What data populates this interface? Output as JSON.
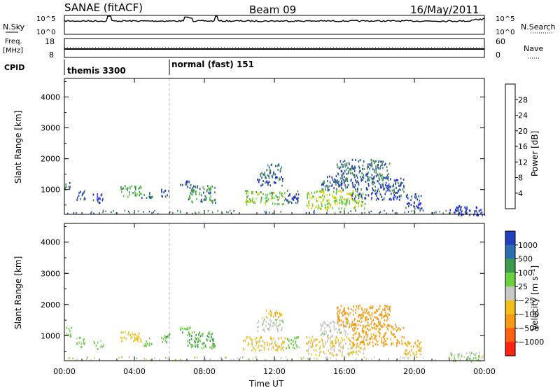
{
  "header": {
    "station": "SANAE (fitACF)",
    "beam": "Beam 09",
    "date": "16/May/2011"
  },
  "panels": {
    "nsky": {
      "label": "N.Sky",
      "tick_top": "10^5",
      "tick_bottom": "10^0"
    },
    "nsearch": {
      "label": "N.Search",
      "tick_top": "10^5",
      "tick_bottom": "10^0"
    },
    "freq": {
      "label_line1": "Freq.",
      "label_line2": "[MHz]",
      "tick_top": "18",
      "tick_bottom": "8"
    },
    "nave": {
      "label": "Nave",
      "tick_top": "60",
      "tick_bottom": "0"
    },
    "cpid": {
      "label": "CPID",
      "segments": [
        {
          "name": "themis 3300",
          "start_hour": 0
        },
        {
          "name": "normal (fast) 151",
          "start_hour": 6.0
        }
      ]
    }
  },
  "time_axis": {
    "label": "Time UT",
    "ticks": [
      "00:00",
      "04:00",
      "08:00",
      "12:00",
      "16:00",
      "20:00",
      "00:00"
    ],
    "tick_hours": [
      0,
      4,
      8,
      12,
      16,
      20,
      24
    ]
  },
  "range_axis": {
    "label": "Slant Range [km]",
    "ticks": [
      "1000",
      "2000",
      "3000",
      "4000"
    ],
    "tick_values": [
      1000,
      2000,
      3000,
      4000
    ],
    "min": 200,
    "max": 4600
  },
  "colorbars": {
    "power": {
      "title": "Power [dB]",
      "labels": [
        "4",
        "8",
        "12",
        "16",
        "20",
        "24",
        "28"
      ],
      "colors": [
        "#1a1aff",
        "#2244aa",
        "#3c8c50",
        "#55c83c",
        "#f0d20a",
        "#f5a014",
        "#ff6a00",
        "#ff2000"
      ]
    },
    "velocity": {
      "title": "Velocity [m s⁻¹]",
      "labels": [
        "1000",
        "500",
        "100",
        "25",
        "−25",
        "−100",
        "−500",
        "−1000"
      ],
      "colors": [
        "#2040c0",
        "#2c6eb0",
        "#3c9a50",
        "#6ad040",
        "#c8c8c8",
        "#f0c018",
        "#f59a14",
        "#ff6010",
        "#ff2410"
      ]
    }
  },
  "chart_data": {
    "type": "heatmap",
    "title": "SANAE (fitACF) Beam 09 16/May/2011",
    "xlabel": "Time UT",
    "ylabel": "Slant Range [km]",
    "x_range_hours": [
      0,
      24
    ],
    "y_range_km": [
      200,
      4600
    ],
    "marker_line_hour": 6.0,
    "echo_regions": [
      {
        "t_start": 0.0,
        "t_end": 0.4,
        "r_start": 1000,
        "r_end": 1300,
        "power_db": 10,
        "velocity": 60
      },
      {
        "t_start": 0.6,
        "t_end": 1.2,
        "r_start": 650,
        "r_end": 1000,
        "power_db": 6,
        "velocity": 40
      },
      {
        "t_start": 1.6,
        "t_end": 2.2,
        "r_start": 600,
        "r_end": 900,
        "power_db": 5,
        "velocity": 30
      },
      {
        "t_start": 3.2,
        "t_end": 4.4,
        "r_start": 800,
        "r_end": 1150,
        "power_db": 12,
        "velocity": -60
      },
      {
        "t_start": 4.4,
        "t_end": 5.0,
        "r_start": 700,
        "r_end": 950,
        "power_db": 8,
        "velocity": 50
      },
      {
        "t_start": 5.5,
        "t_end": 6.0,
        "r_start": 800,
        "r_end": 1100,
        "power_db": 7,
        "velocity": 80
      },
      {
        "t_start": 6.6,
        "t_end": 7.2,
        "r_start": 1100,
        "r_end": 1300,
        "power_db": 6,
        "velocity": 70
      },
      {
        "t_start": 7.0,
        "t_end": 8.6,
        "r_start": 600,
        "r_end": 1150,
        "power_db": 10,
        "velocity": 90
      },
      {
        "t_start": 10.2,
        "t_end": 12.6,
        "r_start": 550,
        "r_end": 1000,
        "power_db": 14,
        "velocity": -40
      },
      {
        "t_start": 11.0,
        "t_end": 12.5,
        "r_start": 1150,
        "r_end": 1600,
        "power_db": 7,
        "velocity": 10
      },
      {
        "t_start": 11.5,
        "t_end": 12.4,
        "r_start": 1600,
        "r_end": 1850,
        "power_db": 8,
        "velocity": -80
      },
      {
        "t_start": 12.6,
        "t_end": 13.4,
        "r_start": 600,
        "r_end": 1000,
        "power_db": 6,
        "velocity": 50
      },
      {
        "t_start": 13.8,
        "t_end": 17.2,
        "r_start": 400,
        "r_end": 1000,
        "power_db": 16,
        "velocity": -30
      },
      {
        "t_start": 14.6,
        "t_end": 16.2,
        "r_start": 1000,
        "r_end": 1500,
        "power_db": 7,
        "velocity": 5
      },
      {
        "t_start": 15.5,
        "t_end": 18.6,
        "r_start": 1300,
        "r_end": 2000,
        "power_db": 8,
        "velocity": -300
      },
      {
        "t_start": 16.4,
        "t_end": 19.4,
        "r_start": 700,
        "r_end": 1400,
        "power_db": 7,
        "velocity": -150
      },
      {
        "t_start": 19.4,
        "t_end": 20.4,
        "r_start": 400,
        "r_end": 900,
        "power_db": 5,
        "velocity": -100
      },
      {
        "t_start": 22.0,
        "t_end": 24.0,
        "r_start": 200,
        "r_end": 500,
        "power_db": 4,
        "velocity": 20
      }
    ]
  }
}
